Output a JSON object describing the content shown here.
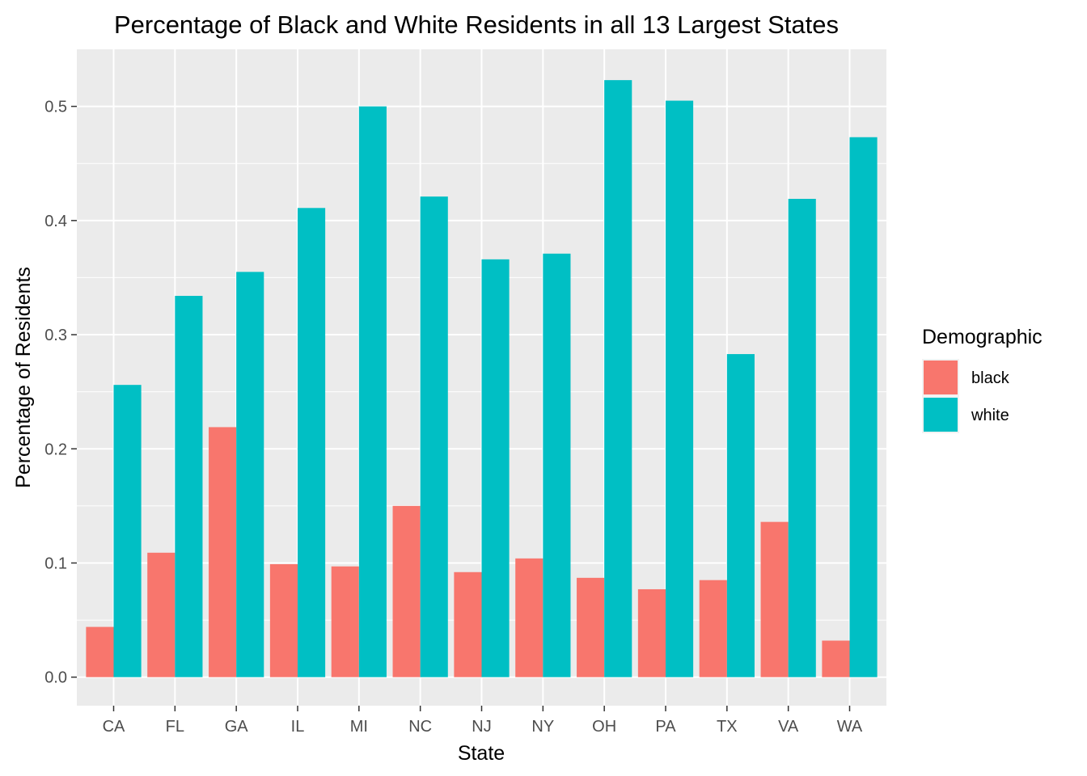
{
  "chart_data": {
    "type": "bar",
    "title": "Percentage of Black and White Residents in all 13 Largest States",
    "xlabel": "State",
    "ylabel": "Percentage of Residents",
    "categories": [
      "CA",
      "FL",
      "GA",
      "IL",
      "MI",
      "NC",
      "NJ",
      "NY",
      "OH",
      "PA",
      "TX",
      "VA",
      "WA"
    ],
    "series": [
      {
        "name": "black",
        "color": "#F8766D",
        "values": [
          0.044,
          0.109,
          0.219,
          0.099,
          0.097,
          0.15,
          0.092,
          0.104,
          0.087,
          0.077,
          0.085,
          0.136,
          0.032
        ]
      },
      {
        "name": "white",
        "color": "#00BFC4",
        "values": [
          0.256,
          0.334,
          0.355,
          0.411,
          0.5,
          0.421,
          0.366,
          0.371,
          0.523,
          0.505,
          0.283,
          0.419,
          0.473
        ]
      }
    ],
    "ylim": [
      -0.025,
      0.55
    ],
    "yticks": [
      0.0,
      0.1,
      0.2,
      0.3,
      0.4,
      0.5
    ],
    "ytick_labels": [
      "0.0",
      "0.1",
      "0.2",
      "0.3",
      "0.4",
      "0.5"
    ],
    "grid": true,
    "panel_background": "#EBEBEB",
    "legend": {
      "title": "Demographic",
      "position": "right"
    }
  }
}
